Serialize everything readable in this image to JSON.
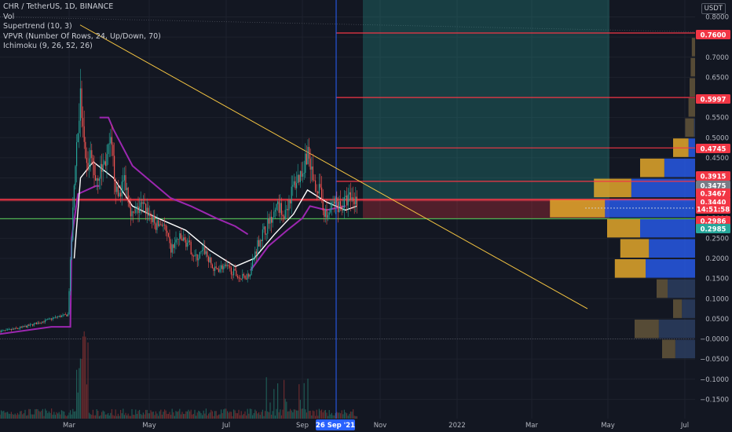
{
  "header": {
    "title": "CHR / TetherUS, 1D, BINANCE",
    "indicators": [
      "Vol",
      "Supertrend (10, 3)",
      "VPVR (Number Of Rows, 24, Up/Down, 70)",
      "Ichimoku (9, 26, 52, 26)"
    ],
    "currency": "USDT"
  },
  "chart_data": {
    "type": "candlestick",
    "y_ticks": [
      0.8,
      0.75,
      0.7,
      0.65,
      0.6,
      0.55,
      0.5,
      0.45,
      0.4,
      0.35,
      0.3,
      0.25,
      0.2,
      0.15,
      0.1,
      0.05,
      0.0,
      -0.05,
      -0.1,
      -0.15
    ],
    "y_tick_labels": [
      "0.8000",
      "0.7500",
      "0.7000",
      "0.6500",
      "0.6000",
      "0.5500",
      "0.5000",
      "0.4500",
      "0.4000",
      "0.3500",
      "0.3000",
      "0.2500",
      "0.2000",
      "0.1500",
      "0.1000",
      "0.0500",
      "−0.0000",
      "−0.0500",
      "−0.1000",
      "−0.1500"
    ],
    "ylim": [
      -0.17,
      0.82
    ],
    "x_tick_labels": [
      "Mar",
      "May",
      "Jul",
      "Sep",
      "Nov",
      "2022",
      "Mar",
      "May",
      "Jul"
    ],
    "cursor_date": "26 Sep '21",
    "price_labels": [
      {
        "value": 0.76,
        "text": "0.7600",
        "color": "#f23645"
      },
      {
        "value": 0.5997,
        "text": "0.5997",
        "color": "#f23645"
      },
      {
        "value": 0.4745,
        "text": "0.4745",
        "color": "#f23645"
      },
      {
        "value": 0.3915,
        "text": "0.3915",
        "color": "#f23645"
      },
      {
        "value": 0.3475,
        "text": "0.3475",
        "color": "#787b86"
      },
      {
        "value": 0.3467,
        "text": "0.3467",
        "color": "#f23645"
      },
      {
        "value": 0.344,
        "text": "0.3440",
        "color": "#f23645"
      },
      {
        "value": 0.326,
        "text": "14:51:58",
        "color": "#f23645"
      },
      {
        "value": 0.2986,
        "text": "0.2986",
        "color": "#f23645"
      },
      {
        "value": 0.2985,
        "text": "0.2985",
        "color": "#26a69a"
      }
    ],
    "horizontal_levels": [
      0.76,
      0.5997,
      0.4745,
      0.3467
    ],
    "position": {
      "entry": 0.344,
      "target": 0.82,
      "stop": 0.2985
    },
    "trendline": {
      "from": 0.78,
      "to": 0.075
    },
    "price_series": [
      [
        "2020-12-20",
        0.018
      ],
      [
        "2021-01-10",
        0.02
      ],
      [
        "2021-01-25",
        0.03
      ],
      [
        "2021-02-10",
        0.045
      ],
      [
        "2021-02-20",
        0.055
      ],
      [
        "2021-02-28",
        0.06
      ],
      [
        "2021-03-03",
        0.25
      ],
      [
        "2021-03-06",
        0.45
      ],
      [
        "2021-03-10",
        0.6
      ],
      [
        "2021-03-14",
        0.42
      ],
      [
        "2021-03-18",
        0.45
      ],
      [
        "2021-03-22",
        0.4
      ],
      [
        "2021-03-28",
        0.43
      ],
      [
        "2021-04-03",
        0.48
      ],
      [
        "2021-04-08",
        0.35
      ],
      [
        "2021-04-14",
        0.4
      ],
      [
        "2021-04-20",
        0.3
      ],
      [
        "2021-04-26",
        0.33
      ],
      [
        "2021-05-02",
        0.32
      ],
      [
        "2021-05-08",
        0.28
      ],
      [
        "2021-05-14",
        0.29
      ],
      [
        "2021-05-20",
        0.22
      ],
      [
        "2021-05-26",
        0.25
      ],
      [
        "2021-06-02",
        0.24
      ],
      [
        "2021-06-09",
        0.2
      ],
      [
        "2021-06-16",
        0.22
      ],
      [
        "2021-06-23",
        0.17
      ],
      [
        "2021-06-30",
        0.18
      ],
      [
        "2021-07-07",
        0.17
      ],
      [
        "2021-07-14",
        0.15
      ],
      [
        "2021-07-21",
        0.16
      ],
      [
        "2021-07-28",
        0.24
      ],
      [
        "2021-08-04",
        0.28
      ],
      [
        "2021-08-11",
        0.33
      ],
      [
        "2021-08-18",
        0.31
      ],
      [
        "2021-08-25",
        0.38
      ],
      [
        "2021-09-01",
        0.42
      ],
      [
        "2021-09-05",
        0.47
      ],
      [
        "2021-09-09",
        0.4
      ],
      [
        "2021-09-14",
        0.37
      ],
      [
        "2021-09-20",
        0.3
      ],
      [
        "2021-09-26",
        0.34
      ],
      [
        "2021-10-02",
        0.33
      ],
      [
        "2021-10-08",
        0.35
      ],
      [
        "2021-10-14",
        0.344
      ]
    ],
    "supertrend_up": [
      [
        "2020-12-20",
        0.005
      ],
      [
        "2021-02-15",
        0.03
      ],
      [
        "2021-03-02",
        0.03
      ],
      [
        "2021-03-03",
        0.25
      ],
      [
        "2021-03-08",
        0.36
      ],
      [
        "2021-03-22",
        0.38
      ],
      [
        "2021-03-25",
        0.38
      ]
    ],
    "supertrend_down": [
      [
        "2021-03-25",
        0.55
      ],
      [
        "2021-04-01",
        0.55
      ],
      [
        "2021-04-05",
        0.52
      ],
      [
        "2021-04-20",
        0.43
      ],
      [
        "2021-05-05",
        0.39
      ],
      [
        "2021-05-20",
        0.35
      ],
      [
        "2021-06-05",
        0.33
      ],
      [
        "2021-06-25",
        0.3
      ],
      [
        "2021-07-10",
        0.28
      ],
      [
        "2021-07-20",
        0.26
      ]
    ],
    "supertrend_up2": [
      [
        "2021-07-22",
        0.17
      ],
      [
        "2021-08-05",
        0.23
      ],
      [
        "2021-08-20",
        0.27
      ],
      [
        "2021-09-01",
        0.3
      ],
      [
        "2021-09-07",
        0.33
      ],
      [
        "2021-09-20",
        0.32
      ],
      [
        "2021-10-05",
        0.33
      ]
    ],
    "ichimoku_base": [
      [
        "2021-03-05",
        0.2
      ],
      [
        "2021-03-10",
        0.4
      ],
      [
        "2021-03-20",
        0.44
      ],
      [
        "2021-04-05",
        0.4
      ],
      [
        "2021-04-20",
        0.33
      ],
      [
        "2021-05-10",
        0.3
      ],
      [
        "2021-06-01",
        0.27
      ],
      [
        "2021-06-20",
        0.22
      ],
      [
        "2021-07-10",
        0.18
      ],
      [
        "2021-07-25",
        0.2
      ],
      [
        "2021-08-10",
        0.26
      ],
      [
        "2021-08-25",
        0.31
      ],
      [
        "2021-09-05",
        0.37
      ],
      [
        "2021-09-20",
        0.34
      ],
      [
        "2021-10-05",
        0.32
      ],
      [
        "2021-10-14",
        0.33
      ]
    ],
    "volume_profile": [
      {
        "price": 0.725,
        "up": 0.03,
        "down": 0.0
      },
      {
        "price": 0.675,
        "up": 0.04,
        "down": 0.0
      },
      {
        "price": 0.625,
        "up": 0.05,
        "down": 0.0
      },
      {
        "price": 0.575,
        "up": 0.06,
        "down": 0.0
      },
      {
        "price": 0.525,
        "up": 0.08,
        "down": 0.01
      },
      {
        "price": 0.475,
        "up": 0.14,
        "down": 0.06
      },
      {
        "price": 0.425,
        "up": 0.22,
        "down": 0.28
      },
      {
        "price": 0.375,
        "up": 0.34,
        "down": 0.58
      },
      {
        "price": 0.325,
        "up": 0.5,
        "down": 0.82
      },
      {
        "price": 0.275,
        "up": 0.3,
        "down": 0.5
      },
      {
        "price": 0.225,
        "up": 0.26,
        "down": 0.42
      },
      {
        "price": 0.175,
        "up": 0.28,
        "down": 0.45
      },
      {
        "price": 0.125,
        "up": 0.1,
        "down": 0.25
      },
      {
        "price": 0.075,
        "up": 0.08,
        "down": 0.12
      },
      {
        "price": 0.025,
        "up": 0.22,
        "down": 0.33
      },
      {
        "price": -0.025,
        "up": 0.12,
        "down": 0.18
      }
    ]
  }
}
